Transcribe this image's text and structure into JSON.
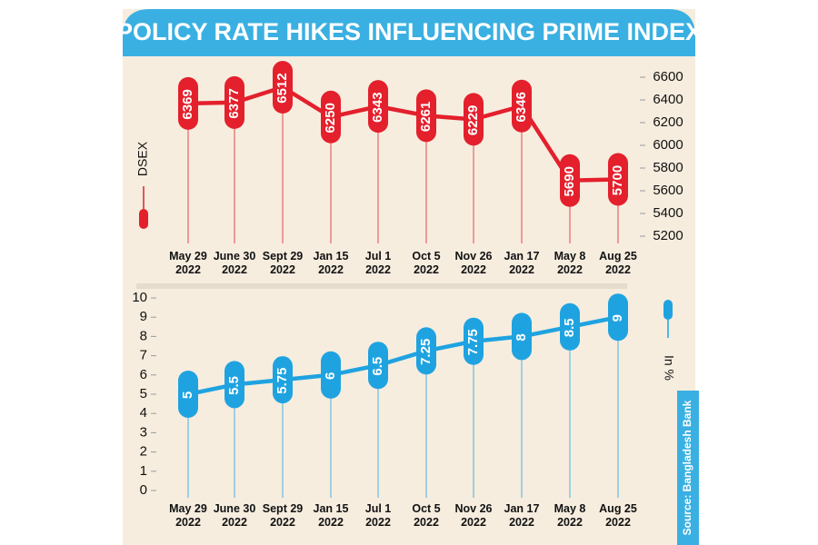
{
  "title": "POLICY RATE HIKES INFLUENCING PRIME INDEX",
  "source": "Source: Bangladesh Bank",
  "chart_data": [
    {
      "type": "line",
      "categories": [
        "May 29 2022",
        "June 30 2022",
        "Sept 29 2022",
        "Jan 15 2022",
        "Jul 1 2022",
        "Oct 5 2022",
        "Nov 26 2022",
        "Jan 17 2022",
        "May 8 2022",
        "Aug 25 2022"
      ],
      "series": [
        {
          "name": "DSEX",
          "color": "#e3202c",
          "values": [
            6369,
            6377,
            6512,
            6250,
            6343,
            6261,
            6229,
            6346,
            5690,
            5700
          ]
        }
      ],
      "ylim": [
        5200,
        6600
      ],
      "yticks": [
        5200,
        5400,
        5600,
        5800,
        6000,
        6200,
        6400,
        6600
      ],
      "y_axis_side": "right"
    },
    {
      "type": "line",
      "categories": [
        "May 29 2022",
        "June 30 2022",
        "Sept 29 2022",
        "Jan 15 2022",
        "Jul 1 2022",
        "Oct 5 2022",
        "Nov 26 2022",
        "Jan 17 2022",
        "May 8 2022",
        "Aug 25 2022"
      ],
      "series": [
        {
          "name": "In %",
          "color": "#1fa3e0",
          "values": [
            5,
            5.5,
            5.75,
            6,
            6.5,
            7.25,
            7.75,
            8,
            8.5,
            9
          ]
        }
      ],
      "ylim": [
        0,
        10
      ],
      "yticks": [
        0,
        1,
        2,
        3,
        4,
        5,
        6,
        7,
        8,
        9,
        10
      ],
      "y_axis_side": "left"
    }
  ]
}
